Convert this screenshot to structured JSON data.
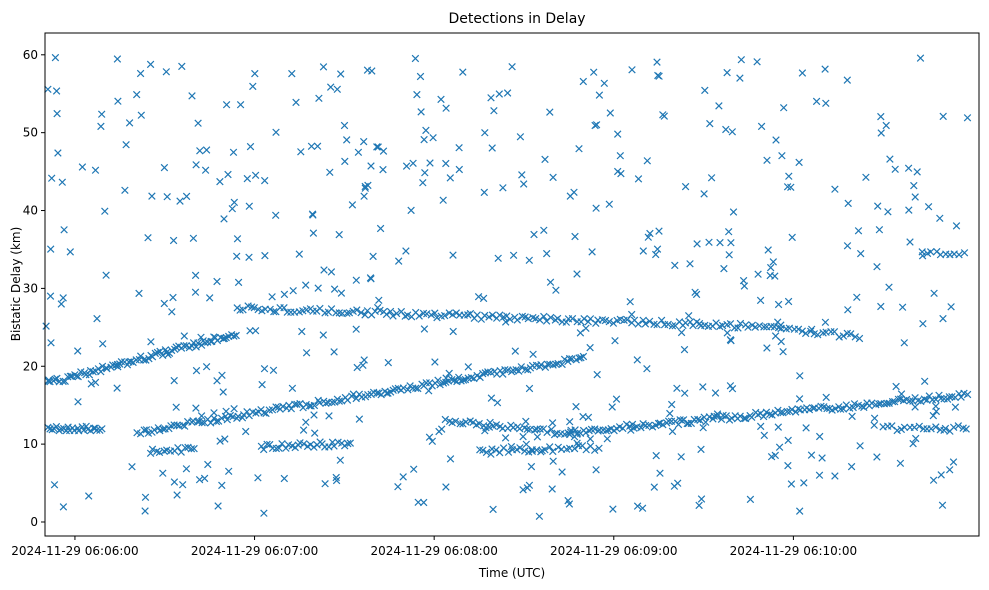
{
  "chart_data": {
    "type": "scatter",
    "title": "Detections in Delay",
    "xlabel": "Time (UTC)",
    "ylabel": "Bistatic Delay (km)",
    "marker": "x",
    "color": "#1f77b4",
    "grid": false,
    "x_tick_labels": [
      "2024-11-29 06:06:00",
      "2024-11-29 06:07:00",
      "2024-11-29 06:08:00",
      "2024-11-29 06:09:00",
      "2024-11-29 06:10:00"
    ],
    "x_tick_seconds": [
      0,
      60,
      120,
      180,
      240
    ],
    "xlim_seconds": [
      -10,
      302
    ],
    "y_ticks": [
      0,
      10,
      20,
      30,
      40,
      50,
      60
    ],
    "ylim": [
      -1.8,
      62.8
    ],
    "tracks": [
      {
        "t_start": -9,
        "t_end": 54,
        "y_start": 17.8,
        "y_end": 24.2,
        "count": 80
      },
      {
        "t_start": 54,
        "t_end": 236,
        "y_start": 27.5,
        "y_end": 25.0,
        "count": 150
      },
      {
        "t_start": 236,
        "t_end": 262,
        "y_start": 24.8,
        "y_end": 23.8,
        "count": 20
      },
      {
        "t_start": -9,
        "t_end": 9,
        "y_start": 12.0,
        "y_end": 12.0,
        "count": 25
      },
      {
        "t_start": 21,
        "t_end": 170,
        "y_start": 11.5,
        "y_end": 21.0,
        "count": 160
      },
      {
        "t_start": 165,
        "t_end": 298,
        "y_start": 11.5,
        "y_end": 16.3,
        "count": 140
      },
      {
        "t_start": 62,
        "t_end": 92,
        "y_start": 9.6,
        "y_end": 10.1,
        "count": 30
      },
      {
        "t_start": 124,
        "t_end": 168,
        "y_start": 13.0,
        "y_end": 11.2,
        "count": 40
      },
      {
        "t_start": 135,
        "t_end": 175,
        "y_start": 9.2,
        "y_end": 9.5,
        "count": 30
      },
      {
        "t_start": 25,
        "t_end": 40,
        "y_start": 9.1,
        "y_end": 9.3,
        "count": 14
      },
      {
        "t_start": 270,
        "t_end": 298,
        "y_start": 12.0,
        "y_end": 12.0,
        "count": 20
      },
      {
        "t_start": 283,
        "t_end": 297,
        "y_start": 34.5,
        "y_end": 34.5,
        "count": 10
      }
    ],
    "noise": {
      "count": 520,
      "t_range": [
        -10,
        300
      ],
      "y_range": [
        0.5,
        60
      ],
      "seed": 20241129
    }
  }
}
